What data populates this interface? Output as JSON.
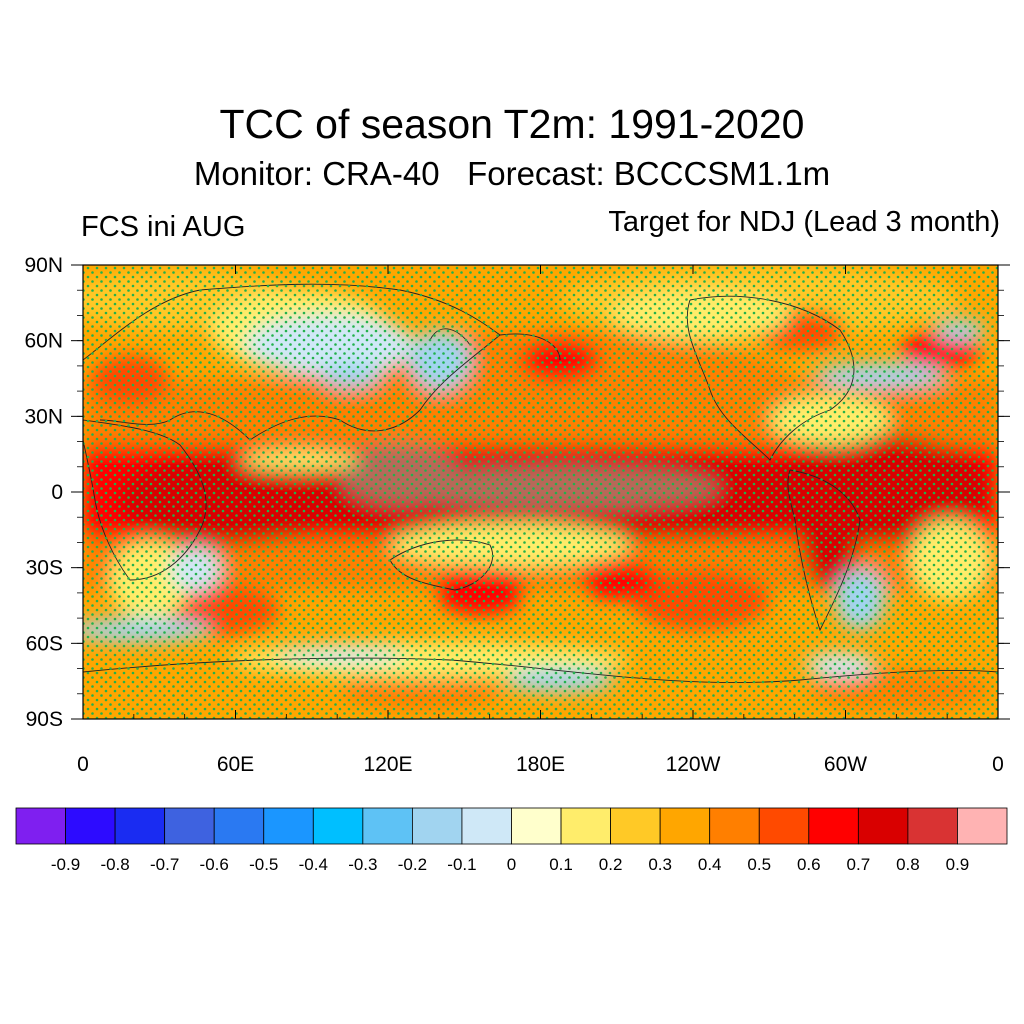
{
  "title": "TCC of season T2m: 1991-2020",
  "subtitle": "Monitor: CRA-40   Forecast: BCCCSM1.1m",
  "left_label": "FCS ini AUG",
  "right_label": "Target for NDJ (Lead 3 month)",
  "axes": {
    "x_ticks": [
      "0",
      "60E",
      "120E",
      "180E",
      "120W",
      "60W",
      "0"
    ],
    "y_ticks": [
      "90N",
      "60N",
      "30N",
      "0",
      "30S",
      "60S",
      "90S"
    ]
  },
  "colorbar": {
    "colors": [
      "#7f1ff0",
      "#2d0bff",
      "#1a2cf2",
      "#3e62e0",
      "#2a79f2",
      "#1b96ff",
      "#00bfff",
      "#5ec2f5",
      "#a1d4f0",
      "#cfe8f7",
      "#ffffcc",
      "#ffed6b",
      "#ffc926",
      "#ffa600",
      "#ff7f00",
      "#ff4a00",
      "#ff0000",
      "#d90000",
      "#d93333",
      "#ffb3b3"
    ],
    "labels": [
      "-0.9",
      "-0.8",
      "-0.7",
      "-0.6",
      "-0.5",
      "-0.4",
      "-0.3",
      "-0.2",
      "-0.1",
      "0",
      "0.1",
      "0.2",
      "0.3",
      "0.4",
      "0.5",
      "0.6",
      "0.7",
      "0.8",
      "0.9"
    ]
  },
  "stipple_color": "#22b14c",
  "land_outline_color": "#222222"
}
